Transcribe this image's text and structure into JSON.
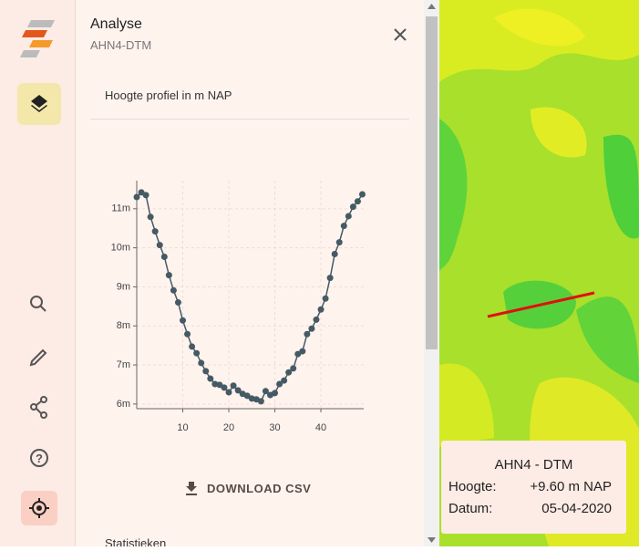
{
  "panel": {
    "title": "Analyse",
    "subtitle": "AHN4-DTM",
    "section_title": "Hoogte profiel in m NAP",
    "download_button": "DOWNLOAD CSV",
    "next_section": "Statistieken"
  },
  "chart_data": {
    "type": "line",
    "x": [
      0,
      1,
      2,
      3,
      4,
      5,
      6,
      7,
      8,
      9,
      10,
      11,
      12,
      13,
      14,
      15,
      16,
      17,
      18,
      19,
      20,
      21,
      22,
      23,
      24,
      25,
      26,
      27,
      28,
      29,
      30,
      31,
      32,
      33,
      34,
      35,
      36,
      37,
      38,
      39,
      40,
      41,
      42,
      43,
      44,
      45,
      46,
      47,
      48,
      49
    ],
    "values": [
      11.3,
      11.42,
      11.35,
      10.79,
      10.42,
      10.07,
      9.77,
      9.3,
      8.91,
      8.6,
      8.14,
      7.79,
      7.47,
      7.3,
      7.05,
      6.84,
      6.65,
      6.51,
      6.49,
      6.42,
      6.3,
      6.47,
      6.35,
      6.26,
      6.21,
      6.14,
      6.12,
      6.07,
      6.33,
      6.23,
      6.28,
      6.51,
      6.6,
      6.81,
      6.91,
      7.28,
      7.35,
      7.79,
      7.93,
      8.16,
      8.42,
      8.7,
      9.23,
      9.84,
      10.14,
      10.56,
      10.81,
      11.05,
      11.19,
      11.37
    ],
    "color": "#455a64",
    "xlim": [
      0,
      49.3
    ],
    "xticks": [
      10,
      20,
      30,
      40
    ],
    "ylim": [
      5.88,
      11.72
    ],
    "yticks": [
      {
        "value": 6,
        "label": "6m"
      },
      {
        "value": 7,
        "label": "7m"
      },
      {
        "value": 8,
        "label": "8m"
      },
      {
        "value": 9,
        "label": "9m"
      },
      {
        "value": 10,
        "label": "10m"
      },
      {
        "value": 11,
        "label": "11m"
      }
    ],
    "grid": true
  },
  "map_popup": {
    "title": "AHN4 - DTM",
    "rows": [
      [
        "Hoogte:",
        "+9.60 m NAP"
      ],
      [
        "Datum:",
        "05-04-2020"
      ]
    ]
  }
}
